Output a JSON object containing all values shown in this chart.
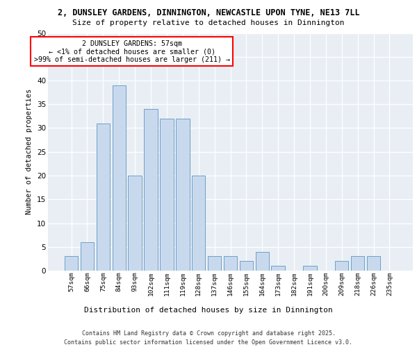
{
  "title_line1": "2, DUNSLEY GARDENS, DINNINGTON, NEWCASTLE UPON TYNE, NE13 7LL",
  "title_line2": "Size of property relative to detached houses in Dinnington",
  "xlabel": "Distribution of detached houses by size in Dinnington",
  "ylabel": "Number of detached properties",
  "categories": [
    "57sqm",
    "66sqm",
    "75sqm",
    "84sqm",
    "93sqm",
    "102sqm",
    "111sqm",
    "119sqm",
    "128sqm",
    "137sqm",
    "146sqm",
    "155sqm",
    "164sqm",
    "173sqm",
    "182sqm",
    "191sqm",
    "200sqm",
    "209sqm",
    "218sqm",
    "226sqm",
    "235sqm"
  ],
  "values": [
    3,
    6,
    31,
    39,
    20,
    34,
    32,
    32,
    20,
    3,
    3,
    2,
    4,
    1,
    0,
    1,
    0,
    2,
    3,
    3,
    0
  ],
  "bar_color": "#c9d9ed",
  "bar_edge_color": "#6ca0c8",
  "ylim": [
    0,
    50
  ],
  "yticks": [
    0,
    5,
    10,
    15,
    20,
    25,
    30,
    35,
    40,
    45,
    50
  ],
  "background_color": "#e8eef4",
  "annotation_line1": "2 DUNSLEY GARDENS: 57sqm",
  "annotation_line2": "← <1% of detached houses are smaller (0)",
  "annotation_line3": ">99% of semi-detached houses are larger (211) →",
  "footer_line1": "Contains HM Land Registry data © Crown copyright and database right 2025.",
  "footer_line2": "Contains public sector information licensed under the Open Government Licence v3.0."
}
